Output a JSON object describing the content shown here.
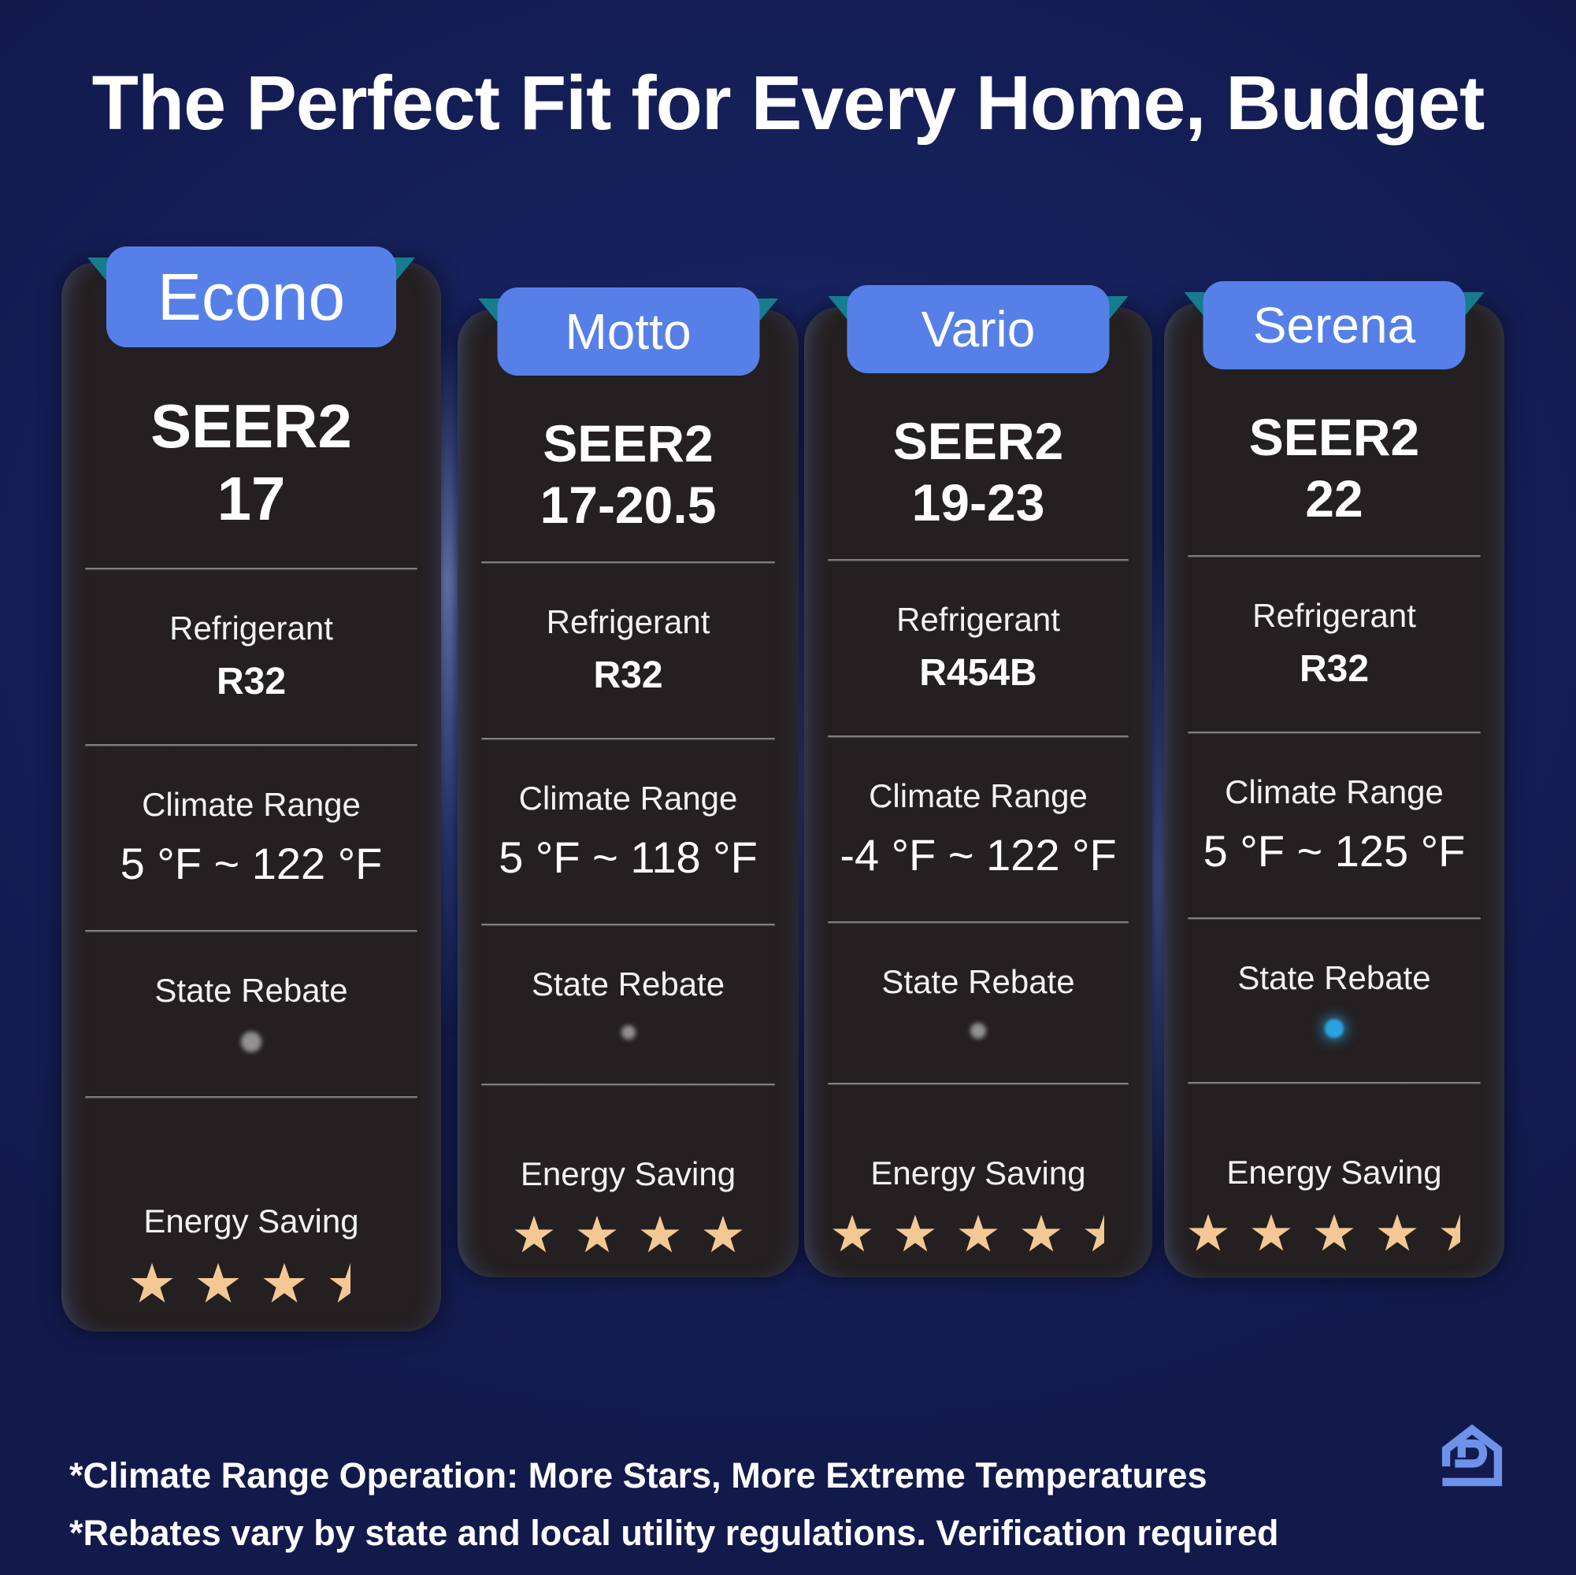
{
  "title": "The Perfect Fit for Every Home, Budget",
  "cards": [
    {
      "name": "Econo",
      "seer2_label": "SEER2",
      "seer2_value": "17",
      "refrigerant_label": "Refrigerant",
      "refrigerant_value": "R32",
      "climate_label": "Climate Range",
      "climate_value": "5 °F ~ 122 °F",
      "rebate_label": "State Rebate",
      "rebate_indicator": "gray",
      "energy_label": "Energy Saving",
      "energy_stars": 3.5
    },
    {
      "name": "Motto",
      "seer2_label": "SEER2",
      "seer2_value": "17-20.5",
      "refrigerant_label": "Refrigerant",
      "refrigerant_value": "R32",
      "climate_label": "Climate Range",
      "climate_value": "5 °F ~ 118 °F",
      "rebate_label": "State Rebate",
      "rebate_indicator": "gray",
      "energy_label": "Energy Saving",
      "energy_stars": 4
    },
    {
      "name": "Vario",
      "seer2_label": "SEER2",
      "seer2_value": "19-23",
      "refrigerant_label": "Refrigerant",
      "refrigerant_value": "R454B",
      "climate_label": "Climate Range",
      "climate_value": "-4 °F ~ 122 °F",
      "rebate_label": "State Rebate",
      "rebate_indicator": "gray",
      "energy_label": "Energy Saving",
      "energy_stars": 4.5
    },
    {
      "name": "Serena",
      "seer2_label": "SEER2",
      "seer2_value": "22",
      "refrigerant_label": "Refrigerant",
      "refrigerant_value": "R32",
      "climate_label": "Climate Range",
      "climate_value": "5 °F ~ 125 °F",
      "rebate_label": "State Rebate",
      "rebate_indicator": "blue",
      "energy_label": "Energy Saving",
      "energy_stars": 4.5
    }
  ],
  "footnotes": [
    "*Climate Range Operation: More Stars, More Extreme Temperatures",
    "*Rebates vary by state and local utility regulations. Verification required"
  ],
  "colors": {
    "background": "#151f58",
    "card": "#242021",
    "tab_blue": "#5680e8",
    "ribbon_teal": "#157d8e",
    "star_gold": "#f4c894",
    "rebate_gray": "#9b9b9b",
    "rebate_blue": "#2ba2e0",
    "logo_blue": "#6e92ea"
  }
}
